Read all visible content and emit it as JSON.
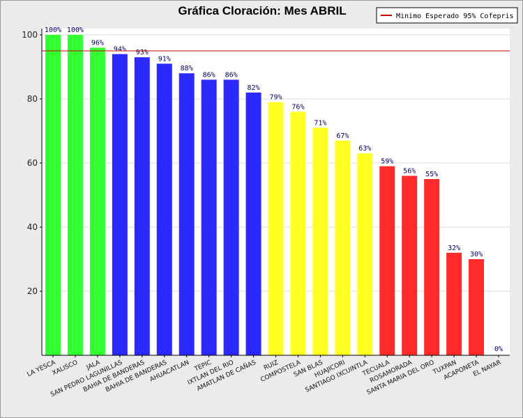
{
  "chart_data": {
    "type": "bar",
    "title": "Gráfica Cloración: Mes ABRIL",
    "xlabel": "",
    "ylabel": "",
    "ylim": [
      0,
      100
    ],
    "yticks": [
      20,
      40,
      60,
      80,
      100
    ],
    "categories": [
      "LA YESCA",
      "XALISCO",
      "JALA",
      "SAN PEDRO LAGUNILLAS",
      "BAHIA DE BANDERAS",
      "BAHIA DE BANDERAS",
      "AHUACATLAN",
      "TEPIC",
      "IXTLAN DEL RIO",
      "AMATLAN DE CAÑAS",
      "RUIZ",
      "COMPOSTELA",
      "SAN BLAS",
      "HUAJICORI",
      "SANTIAGO IXCUINTLA",
      "TECUALA",
      "ROSAMORADA",
      "SANTA MARIA DEL ORO",
      "TUXPAN",
      "ACAPONETA",
      "EL NAYAR"
    ],
    "values": [
      100,
      100,
      96,
      94,
      93,
      91,
      88,
      86,
      86,
      82,
      79,
      76,
      71,
      67,
      63,
      59,
      56,
      55,
      32,
      30,
      0
    ],
    "data_labels": [
      "100%",
      "100%",
      "96%",
      "94%",
      "93%",
      "91%",
      "88%",
      "86%",
      "86%",
      "82%",
      "79%",
      "76%",
      "71%",
      "67%",
      "63%",
      "59%",
      "56%",
      "55%",
      "32%",
      "30%",
      "0%"
    ],
    "bar_colors": [
      "#33ff33",
      "#33ff33",
      "#33ff33",
      "#2a2aff",
      "#2a2aff",
      "#2a2aff",
      "#2a2aff",
      "#2a2aff",
      "#2a2aff",
      "#2a2aff",
      "#ffff22",
      "#ffff22",
      "#ffff22",
      "#ffff22",
      "#ffff22",
      "#ff2a2a",
      "#ff2a2a",
      "#ff2a2a",
      "#ff2a2a",
      "#ff2a2a",
      "#ff2a2a"
    ],
    "reference_line": {
      "value": 95,
      "color": "#cc0000",
      "label": "Minimo Esperado 95% Cofepris"
    },
    "legend_position": "top-right",
    "grid": true
  }
}
